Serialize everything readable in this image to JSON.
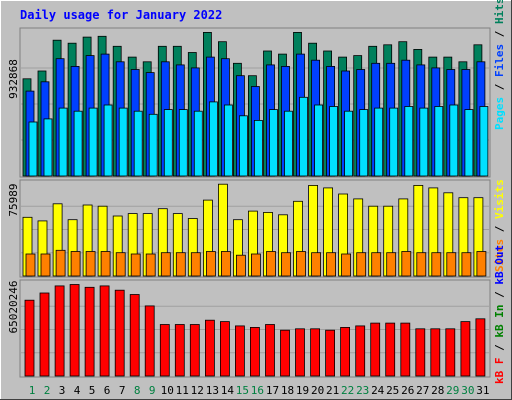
{
  "title": "Daily usage for January 2022",
  "colors": {
    "background": "#c0c0c0",
    "panel": "#c0c0c0",
    "title": "#0000ff",
    "hits": "#00805c",
    "files": "#0040ff",
    "pages": "#00e0ff",
    "visits": "#ffff00",
    "sites": "#ff8000",
    "kbin": "#008000",
    "kbout": "#0000ff",
    "kbf": "#ff0000",
    "weekday_label": "#0000ff",
    "weekend_label": "#008040"
  },
  "panels": {
    "top": {
      "max_label": "932868",
      "legend": [
        "Pages",
        "/",
        "Files",
        "/",
        "Hits"
      ]
    },
    "mid": {
      "max_label": "75989",
      "legend": [
        "Sites",
        "/",
        "Visits"
      ]
    },
    "bot": {
      "max_label": "65020246",
      "legend": [
        "kB F",
        "/",
        "kB In",
        "/",
        "kB Out"
      ]
    }
  },
  "chart_data": [
    {
      "type": "bar",
      "title": "Daily usage for January 2022",
      "categories": [
        "1",
        "2",
        "3",
        "4",
        "5",
        "6",
        "7",
        "8",
        "9",
        "10",
        "11",
        "12",
        "13",
        "14",
        "15",
        "16",
        "17",
        "18",
        "19",
        "20",
        "21",
        "22",
        "23",
        "24",
        "25",
        "26",
        "27",
        "28",
        "29",
        "30",
        "31"
      ],
      "weekend_days": [
        "1",
        "2",
        "8",
        "9",
        "15",
        "16",
        "22",
        "23",
        "29",
        "30"
      ],
      "ylim": [
        0,
        932868
      ],
      "series": [
        {
          "name": "Hits",
          "values": [
            630000,
            680000,
            880000,
            860000,
            900000,
            905000,
            840000,
            770000,
            740000,
            840000,
            840000,
            800000,
            930000,
            870000,
            730000,
            650000,
            810000,
            790000,
            930000,
            860000,
            810000,
            770000,
            780000,
            840000,
            850000,
            870000,
            820000,
            770000,
            770000,
            740000,
            850000
          ]
        },
        {
          "name": "Files",
          "values": [
            550000,
            610000,
            760000,
            710000,
            780000,
            790000,
            740000,
            690000,
            670000,
            740000,
            720000,
            700000,
            770000,
            760000,
            650000,
            580000,
            720000,
            710000,
            790000,
            750000,
            710000,
            680000,
            690000,
            730000,
            730000,
            750000,
            720000,
            700000,
            690000,
            690000,
            740000
          ]
        },
        {
          "name": "Pages",
          "values": [
            350000,
            370000,
            440000,
            420000,
            440000,
            460000,
            440000,
            420000,
            400000,
            430000,
            430000,
            420000,
            480000,
            460000,
            390000,
            360000,
            430000,
            420000,
            510000,
            460000,
            450000,
            420000,
            430000,
            440000,
            440000,
            450000,
            440000,
            450000,
            460000,
            430000,
            450000
          ]
        }
      ]
    },
    {
      "type": "bar",
      "categories": [
        "1",
        "2",
        "3",
        "4",
        "5",
        "6",
        "7",
        "8",
        "9",
        "10",
        "11",
        "12",
        "13",
        "14",
        "15",
        "16",
        "17",
        "18",
        "19",
        "20",
        "21",
        "22",
        "23",
        "24",
        "25",
        "26",
        "27",
        "28",
        "29",
        "30",
        "31"
      ],
      "ylim": [
        0,
        75989
      ],
      "series": [
        {
          "name": "Visits",
          "values": [
            48000,
            45000,
            59000,
            46000,
            58000,
            57000,
            49000,
            51000,
            51000,
            55000,
            51000,
            47000,
            62000,
            75000,
            46000,
            53000,
            52000,
            50000,
            61000,
            74000,
            72000,
            67000,
            63000,
            57000,
            57000,
            63000,
            74000,
            72000,
            68000,
            64000,
            64000
          ]
        },
        {
          "name": "Sites",
          "values": [
            18000,
            18000,
            21000,
            20000,
            20000,
            20000,
            19000,
            18000,
            18000,
            19000,
            19000,
            19000,
            20000,
            20000,
            17000,
            18000,
            20000,
            19000,
            20000,
            19000,
            19000,
            18000,
            19000,
            19000,
            19000,
            20000,
            19000,
            19000,
            19000,
            19000,
            20000
          ]
        }
      ]
    },
    {
      "type": "bar",
      "categories": [
        "1",
        "2",
        "3",
        "4",
        "5",
        "6",
        "7",
        "8",
        "9",
        "10",
        "11",
        "12",
        "13",
        "14",
        "15",
        "16",
        "17",
        "18",
        "19",
        "20",
        "21",
        "22",
        "23",
        "24",
        "25",
        "26",
        "27",
        "28",
        "29",
        "30",
        "31"
      ],
      "ylim": [
        0,
        65020246
      ],
      "series": [
        {
          "name": "kB F",
          "values": [
            53000000,
            58000000,
            63000000,
            64000000,
            62000000,
            63000000,
            60000000,
            57000000,
            49000000,
            36000000,
            36000000,
            36000000,
            39000000,
            38000000,
            35000000,
            34000000,
            36000000,
            32000000,
            33000000,
            33000000,
            32000000,
            34000000,
            35000000,
            37000000,
            37000000,
            37000000,
            33000000,
            33000000,
            33000000,
            38000000,
            40000000
          ]
        }
      ]
    }
  ]
}
